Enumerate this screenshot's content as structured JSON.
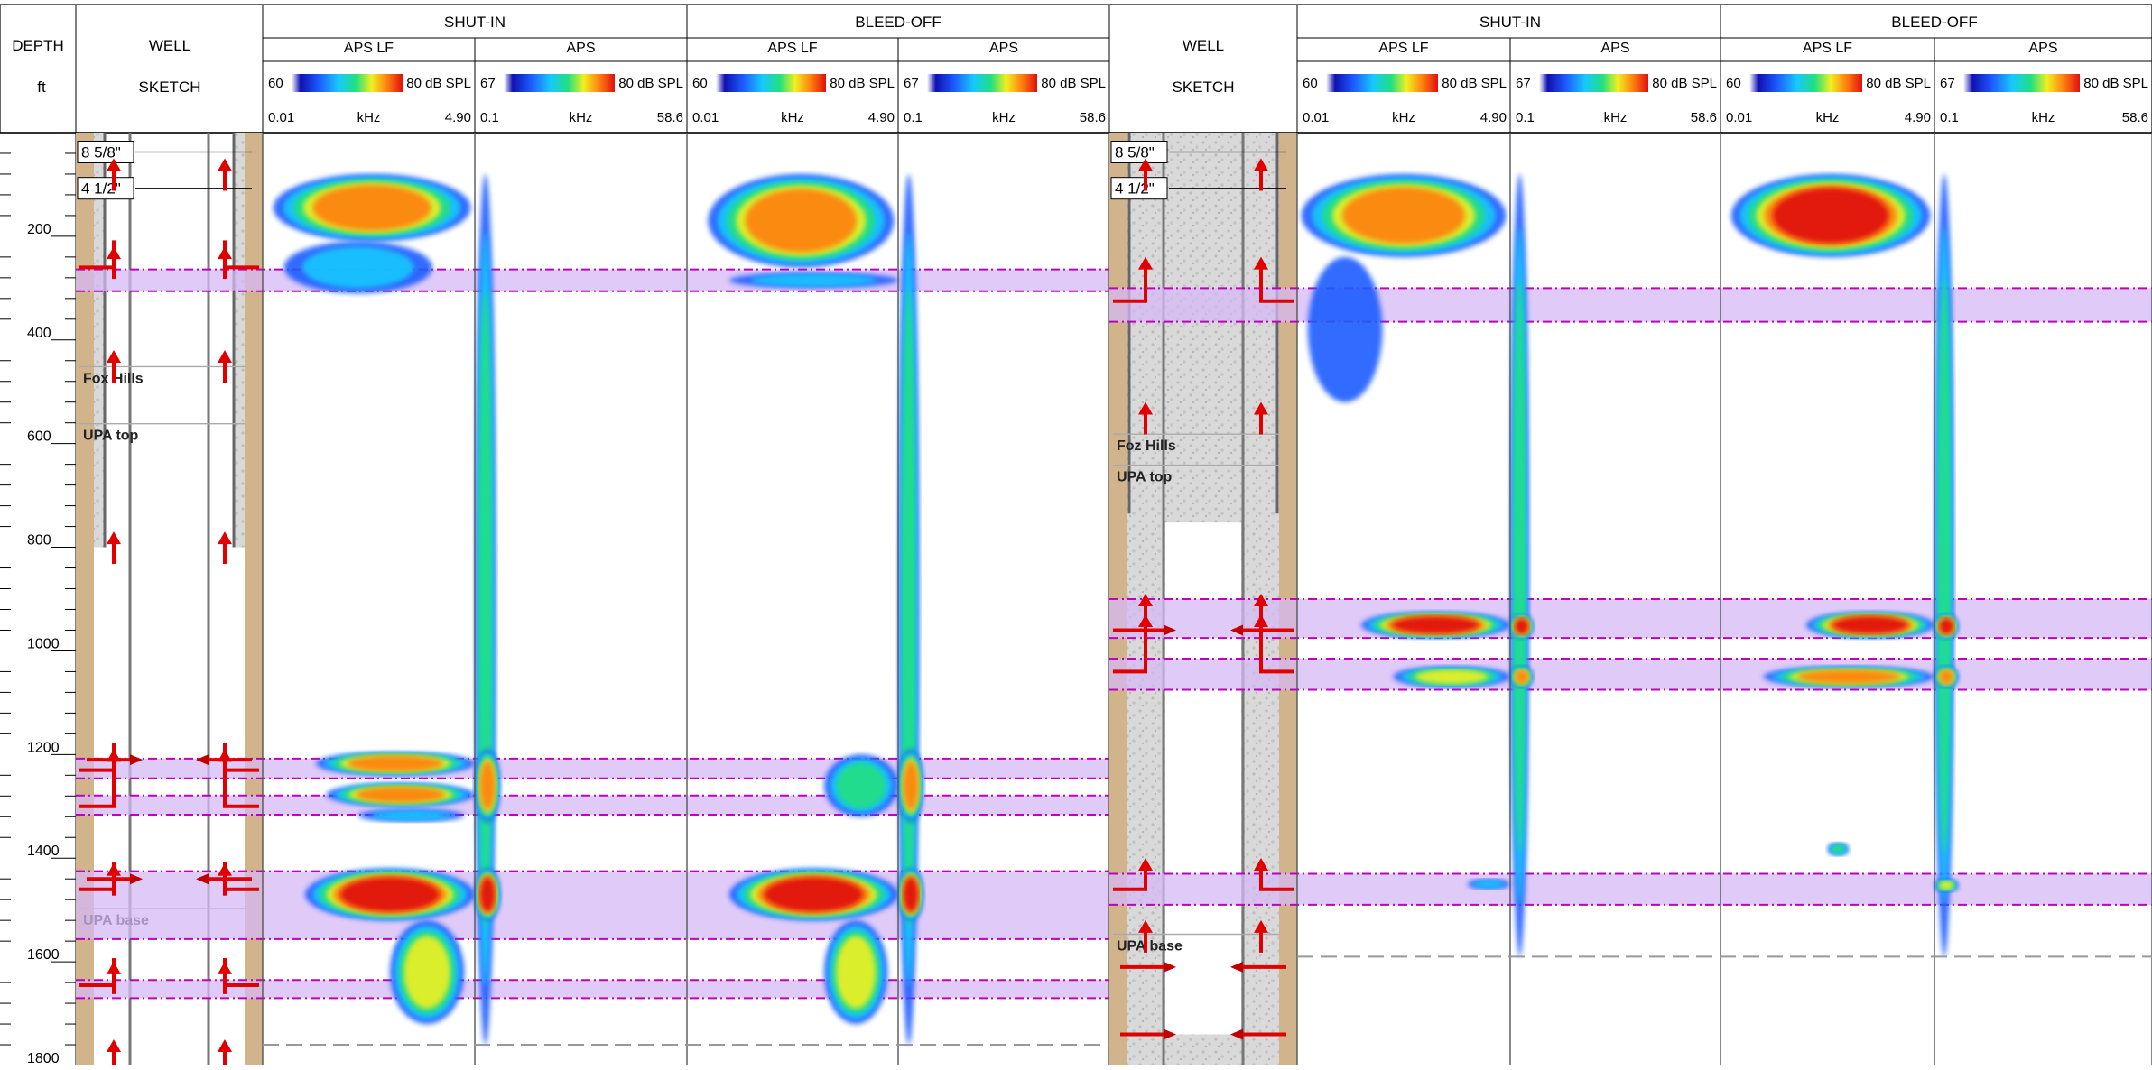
{
  "header": {
    "depth_label": "DEPTH",
    "depth_unit": "ft",
    "well_label": "WELL",
    "sketch_label": "SKETCH",
    "shutin_label": "SHUT-IN",
    "bleedoff_label": "BLEED-OFF",
    "aps_lf_label": "APS LF",
    "aps_label": "APS",
    "aps_lf_scale": {
      "min": "60",
      "max": "80 dB SPL",
      "fmin": "0.01",
      "funit": "kHz",
      "fmax": "4.90"
    },
    "aps_scale": {
      "min": "67",
      "max": "80 dB SPL",
      "fmin": "0.1",
      "funit": "kHz",
      "fmax": "58.6"
    }
  },
  "chart_data": {
    "type": "heatmap",
    "depth_axis": {
      "label": "DEPTH",
      "unit": "ft",
      "range": [
        0,
        1800
      ],
      "ticks": [
        200,
        400,
        600,
        800,
        1000,
        1200,
        1400,
        1600,
        1800
      ],
      "minor_step": 40
    },
    "colorscale": [
      "#ffffff",
      "#1010b0",
      "#1e5cff",
      "#18c8ff",
      "#20e080",
      "#f0f020",
      "#ff8010",
      "#e01010"
    ],
    "highlight_color": "#d6b8f4",
    "wells": [
      {
        "id": "well-1",
        "casing_labels": [
          "8 5/8\"",
          "4 1/2\""
        ],
        "formations": [
          {
            "name": "Fox Hills",
            "depth": 490
          },
          {
            "name": "UPA top",
            "depth": 600
          },
          {
            "name": "UPA base",
            "depth": 1535
          }
        ],
        "highlight_zones": [
          [
            264,
            306
          ],
          [
            1208,
            1246
          ],
          [
            1279,
            1316
          ],
          [
            1425,
            1556
          ],
          [
            1635,
            1670
          ]
        ],
        "cement_bottom": 800,
        "arrow_depths": [
          60,
          230,
          430,
          780,
          1200,
          1420,
          1610,
          1760
        ],
        "perforations": [
          1210,
          1440
        ],
        "lateral_arrows": [
          260,
          1230,
          1300,
          1460,
          1645
        ],
        "log_bottom": 1760,
        "tracks": {
          "shutin_lf": [
            {
              "d0": 80,
              "d1": 210,
              "x0": 0.05,
              "x1": 0.98,
              "peak": 0.9
            },
            {
              "d0": 210,
              "d1": 310,
              "x0": 0.1,
              "x1": 0.8,
              "peak": 0.25
            },
            {
              "d0": 1195,
              "d1": 1240,
              "x0": 0.25,
              "x1": 1.0,
              "peak": 0.8
            },
            {
              "d0": 1255,
              "d1": 1300,
              "x0": 0.3,
              "x1": 1.0,
              "peak": 0.75
            },
            {
              "d0": 1305,
              "d1": 1330,
              "x0": 0.45,
              "x1": 0.95,
              "peak": 0.4
            },
            {
              "d0": 1420,
              "d1": 1520,
              "x0": 0.2,
              "x1": 1.0,
              "peak": 1.0
            },
            {
              "d0": 1520,
              "d1": 1720,
              "x0": 0.6,
              "x1": 0.95,
              "peak": 0.6
            }
          ],
          "shutin_hf": [
            {
              "d0": 80,
              "d1": 1760,
              "x0": 0.0,
              "x1": 0.1,
              "peak": 0.5
            },
            {
              "d0": 1190,
              "d1": 1330,
              "x0": 0.0,
              "x1": 0.12,
              "peak": 0.9
            },
            {
              "d0": 1420,
              "d1": 1520,
              "x0": 0.0,
              "x1": 0.12,
              "peak": 1.0
            }
          ],
          "bleed_lf": [
            {
              "d0": 80,
              "d1": 260,
              "x0": 0.1,
              "x1": 0.98,
              "peak": 0.8
            },
            {
              "d0": 270,
              "d1": 300,
              "x0": 0.2,
              "x1": 1.0,
              "peak": 0.3
            },
            {
              "d0": 1200,
              "d1": 1320,
              "x0": 0.65,
              "x1": 1.0,
              "peak": 0.5
            },
            {
              "d0": 1420,
              "d1": 1520,
              "x0": 0.2,
              "x1": 1.0,
              "peak": 1.0
            },
            {
              "d0": 1520,
              "d1": 1720,
              "x0": 0.65,
              "x1": 0.95,
              "peak": 0.6
            }
          ],
          "bleed_hf": [
            {
              "d0": 80,
              "d1": 1760,
              "x0": 0.0,
              "x1": 0.1,
              "peak": 0.5
            },
            {
              "d0": 1190,
              "d1": 1330,
              "x0": 0.0,
              "x1": 0.12,
              "peak": 0.8
            },
            {
              "d0": 1420,
              "d1": 1520,
              "x0": 0.0,
              "x1": 0.12,
              "peak": 1.0
            }
          ]
        }
      },
      {
        "id": "well-2",
        "casing_labels": [
          "8 5/8\"",
          "4 1/2\""
        ],
        "formations": [
          {
            "name": "Foz Hills",
            "depth": 620
          },
          {
            "name": "UPA top",
            "depth": 680
          },
          {
            "name": "UPA base",
            "depth": 1585
          }
        ],
        "highlight_zones": [
          [
            300,
            365
          ],
          [
            900,
            975
          ],
          [
            1015,
            1075
          ],
          [
            1430,
            1490
          ]
        ],
        "cement_bottom": 735,
        "arrow_depths": [
          60,
          250,
          530,
          900,
          940,
          1410,
          1530
        ],
        "perforations": [
          960,
          1610,
          1740
        ],
        "lateral_arrows": [
          325,
          960,
          1040,
          1460
        ],
        "log_bottom": 1590,
        "tracks": {
          "shutin_lf": [
            {
              "d0": 80,
              "d1": 240,
              "x0": 0.02,
              "x1": 0.98,
              "peak": 0.85
            },
            {
              "d0": 240,
              "d1": 520,
              "x0": 0.05,
              "x1": 0.4,
              "peak": 0.2
            },
            {
              "d0": 925,
              "d1": 975,
              "x0": 0.3,
              "x1": 1.0,
              "peak": 0.95
            },
            {
              "d0": 1030,
              "d1": 1070,
              "x0": 0.45,
              "x1": 1.0,
              "peak": 0.7
            },
            {
              "d0": 1440,
              "d1": 1460,
              "x0": 0.8,
              "x1": 1.0,
              "peak": 0.25
            }
          ],
          "shutin_hf": [
            {
              "d0": 80,
              "d1": 1590,
              "x0": 0.0,
              "x1": 0.09,
              "peak": 0.5
            },
            {
              "d0": 930,
              "d1": 975,
              "x0": 0.0,
              "x1": 0.11,
              "peak": 1.0
            },
            {
              "d0": 1030,
              "d1": 1070,
              "x0": 0.0,
              "x1": 0.11,
              "peak": 0.8
            }
          ],
          "bleed_lf": [
            {
              "d0": 80,
              "d1": 240,
              "x0": 0.05,
              "x1": 0.98,
              "peak": 1.0
            },
            {
              "d0": 925,
              "d1": 975,
              "x0": 0.4,
              "x1": 1.0,
              "peak": 1.0
            },
            {
              "d0": 1030,
              "d1": 1070,
              "x0": 0.2,
              "x1": 1.0,
              "peak": 0.75
            },
            {
              "d0": 1370,
              "d1": 1395,
              "x0": 0.5,
              "x1": 0.6,
              "peak": 0.55
            }
          ],
          "bleed_hf": [
            {
              "d0": 80,
              "d1": 1590,
              "x0": 0.0,
              "x1": 0.09,
              "peak": 0.5
            },
            {
              "d0": 930,
              "d1": 975,
              "x0": 0.0,
              "x1": 0.11,
              "peak": 1.0
            },
            {
              "d0": 1030,
              "d1": 1070,
              "x0": 0.0,
              "x1": 0.11,
              "peak": 0.8
            },
            {
              "d0": 1440,
              "d1": 1465,
              "x0": 0.0,
              "x1": 0.11,
              "peak": 0.6
            }
          ]
        }
      }
    ]
  }
}
